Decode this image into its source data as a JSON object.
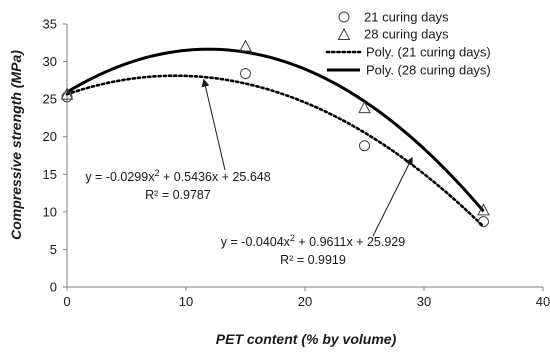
{
  "chart_data": {
    "type": "scatter",
    "title": "",
    "xlabel": "PET content (% by volume)",
    "ylabel": "Compressive strength (MPa)",
    "xlim": [
      0,
      40
    ],
    "ylim": [
      0,
      35
    ],
    "x_ticks": [
      0,
      10,
      20,
      30,
      40
    ],
    "y_ticks": [
      0,
      5,
      10,
      15,
      20,
      25,
      30,
      35
    ],
    "grid": false,
    "legend_position": "top-right",
    "series": [
      {
        "name": "21 curing days",
        "marker": "circle",
        "x": [
          0,
          15,
          25,
          35
        ],
        "y": [
          25.3,
          28.4,
          18.8,
          8.7
        ]
      },
      {
        "name": "28 curing days",
        "marker": "triangle",
        "x": [
          0,
          15,
          25,
          35
        ],
        "y": [
          25.6,
          32.0,
          23.8,
          10.2
        ]
      }
    ],
    "trendlines": [
      {
        "name": "Poly. (21 curing days)",
        "style": "dotted",
        "a": -0.0299,
        "b": 0.5436,
        "c": 25.648,
        "x_range": [
          0,
          35
        ],
        "equation_prefix": "y = -0.0299x",
        "equation_suffix": " + 0.5436x + 25.648",
        "r2": "R² = 0.9787"
      },
      {
        "name": "Poly. (28 curing days)",
        "style": "solid",
        "a": -0.0404,
        "b": 0.9611,
        "c": 25.929,
        "x_range": [
          0,
          35
        ],
        "equation_prefix": "y = -0.0404x",
        "equation_suffix": " + 0.9611x + 25.929",
        "r2": "R² = 0.9919"
      }
    ],
    "annotations": [
      {
        "for": "Poly. (21 curing days)",
        "arrow_to": [
          11.5,
          27.6
        ]
      },
      {
        "for": "Poly. (28 curing days)",
        "arrow_to": [
          29,
          17.2
        ]
      }
    ]
  }
}
